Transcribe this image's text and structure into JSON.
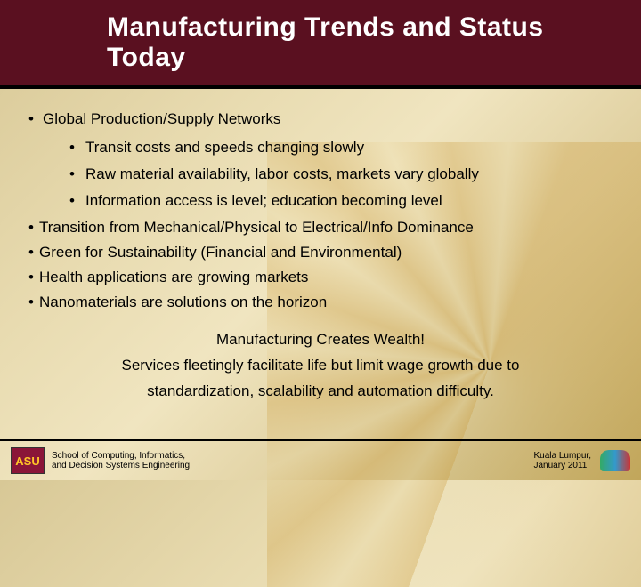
{
  "header": {
    "title": "Manufacturing  Trends and Status Today"
  },
  "bullets": {
    "b1": "Global Production/Supply Networks",
    "b1a": "Transit costs and speeds changing slowly",
    "b1b": "Raw material availability, labor costs, markets vary globally",
    "b1c": "Information access is level; education becoming level",
    "b2": "Transition from Mechanical/Physical to Electrical/Info Dominance",
    "b3": "Green for Sustainability (Financial and Environmental)",
    "b4": "Health applications are growing markets",
    "b5": "Nanomaterials are solutions on the horizon"
  },
  "emphasis": {
    "line1": "Manufacturing Creates Wealth!",
    "line2": "Services fleetingly facilitate life but limit wage growth due to",
    "line3": "standardization, scalability and automation difficulty."
  },
  "footer": {
    "logo": "ASU",
    "school_l1": "School of Computing, Informatics,",
    "school_l2": "and Decision Systems Engineering",
    "venue_l1": "Kuala Lumpur,",
    "venue_l2": "January 2011"
  },
  "colors": {
    "header_bg": "#5a1020",
    "asu_bg": "#8a1538",
    "asu_fg": "#ffc627"
  }
}
